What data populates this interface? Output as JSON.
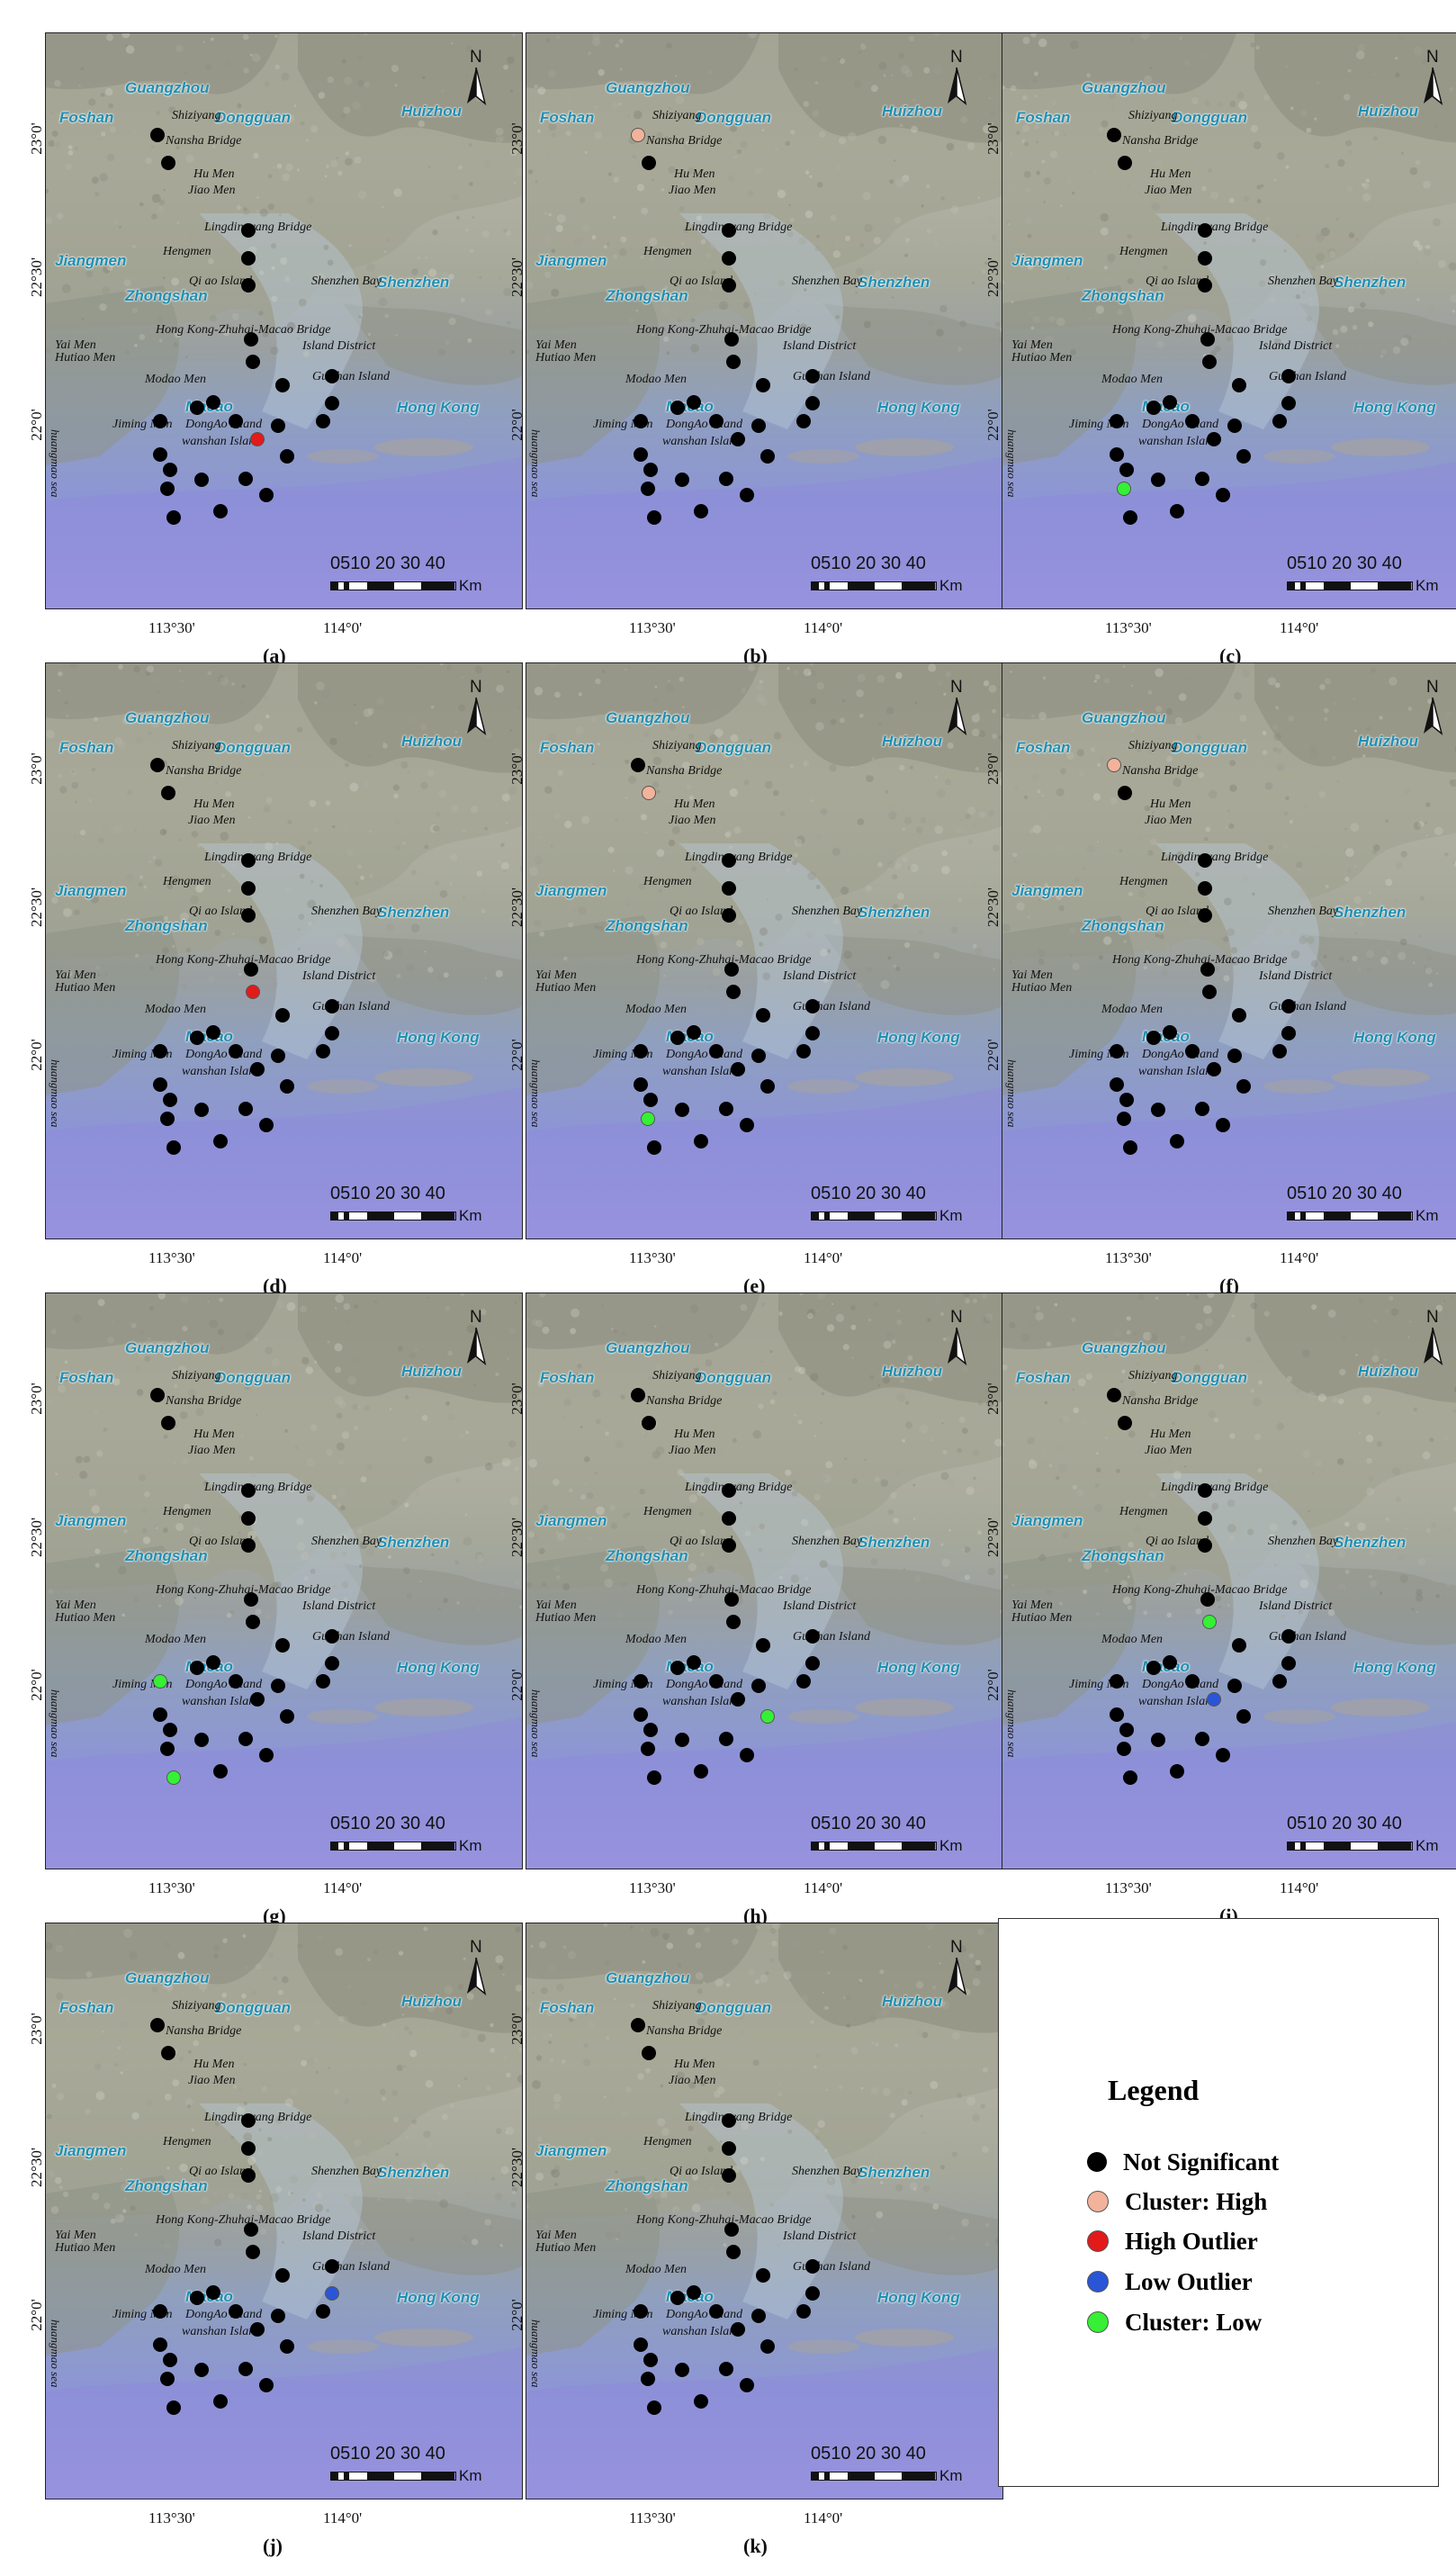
{
  "north_label": "N",
  "scale": {
    "ticks": "0510 20 30 40",
    "unit": "Km"
  },
  "lat_labels": [
    "23°0'",
    "22°30'",
    "22°0'"
  ],
  "lon_labels": [
    "113°30'",
    "114°0'"
  ],
  "cities": [
    "Guangzhou",
    "Foshan",
    "Dongguan",
    "Huizhou",
    "Jiangmen",
    "Zhongshan",
    "Shenzhen",
    "Macao",
    "Hong Kong"
  ],
  "features": [
    "Shiziyang",
    "Nansha Bridge",
    "Hu Men",
    "Jiao Men",
    "Lingdingyang Bridge",
    "Hengmen",
    "Qi ao Island",
    "Shenzhen Bay",
    "Hong Kong-Zhuhai-Macao Bridge",
    "Island District",
    "Yai Men",
    "Hutiao Men",
    "Modao Men",
    "Guishan Island",
    "Jiming Men",
    "DongAo Island",
    "wanshan Island",
    "huangmao sea"
  ],
  "colors": {
    "not_significant": "#000000",
    "cluster_high": "#f2b39a",
    "high_outlier": "#e21a1a",
    "low_outlier": "#2a55d6",
    "cluster_low": "#35f035"
  },
  "panels": [
    {
      "label": "(a)",
      "highlights": [
        {
          "station": 16,
          "cat": "high_outlier"
        }
      ]
    },
    {
      "label": "(b)",
      "highlights": [
        {
          "station": 0,
          "cat": "cluster_high"
        }
      ]
    },
    {
      "label": "(c)",
      "highlights": [
        {
          "station": 22,
          "cat": "cluster_low"
        }
      ]
    },
    {
      "label": "(d)",
      "highlights": [
        {
          "station": 6,
          "cat": "high_outlier"
        }
      ]
    },
    {
      "label": "(e)",
      "highlights": [
        {
          "station": 1,
          "cat": "cluster_high"
        },
        {
          "station": 22,
          "cat": "cluster_low"
        }
      ]
    },
    {
      "label": "(f)",
      "highlights": [
        {
          "station": 0,
          "cat": "cluster_high"
        }
      ]
    },
    {
      "label": "(g)",
      "highlights": [
        {
          "station": 11,
          "cat": "cluster_low"
        },
        {
          "station": 24,
          "cat": "cluster_low"
        }
      ]
    },
    {
      "label": "(h)",
      "highlights": [
        {
          "station": 17,
          "cat": "cluster_low"
        }
      ]
    },
    {
      "label": "(i)",
      "highlights": [
        {
          "station": 6,
          "cat": "cluster_low"
        },
        {
          "station": 16,
          "cat": "low_outlier"
        }
      ]
    },
    {
      "label": "(j)",
      "highlights": [
        {
          "station": 10,
          "cat": "low_outlier"
        }
      ]
    },
    {
      "label": "(k)",
      "highlights": []
    }
  ],
  "legend": {
    "title": "Legend",
    "items": [
      {
        "label": "Not Significant",
        "color_key": "not_significant"
      },
      {
        "label": "Cluster: High",
        "color_key": "cluster_high"
      },
      {
        "label": "High Outlier",
        "color_key": "high_outlier"
      },
      {
        "label": "Low Outlier",
        "color_key": "low_outlier"
      },
      {
        "label": "Cluster: Low",
        "color_key": "cluster_low"
      }
    ]
  }
}
